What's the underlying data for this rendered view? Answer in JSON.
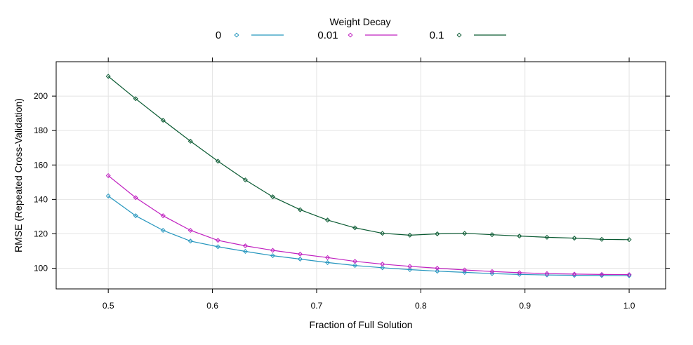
{
  "chart_data": {
    "type": "line",
    "xlabel": "Fraction of Full Solution",
    "ylabel": "RMSE (Repeated Cross-Validation)",
    "xlim": [
      0.45,
      1.035
    ],
    "ylim": [
      88,
      220
    ],
    "xticks": [
      0.5,
      0.6,
      0.7,
      0.8,
      0.9,
      1.0
    ],
    "xtick_labels": [
      "0.5",
      "0.6",
      "0.7",
      "0.8",
      "0.9",
      "1.0"
    ],
    "yticks": [
      100,
      120,
      140,
      160,
      180,
      200
    ],
    "ytick_labels": [
      "100",
      "120",
      "140",
      "160",
      "180",
      "200"
    ],
    "grid": true,
    "legend": {
      "title": "Weight Decay",
      "placement": "top-center"
    },
    "x": [
      0.5,
      0.5263,
      0.5526,
      0.5789,
      0.6053,
      0.6316,
      0.6579,
      0.6842,
      0.7105,
      0.7368,
      0.7632,
      0.7895,
      0.8158,
      0.8421,
      0.8684,
      0.8947,
      0.9211,
      0.9474,
      0.9737,
      1.0
    ],
    "series": [
      {
        "name": "0",
        "color": "#2596be",
        "values": [
          142,
          130.5,
          122,
          115.8,
          112.5,
          109.8,
          107.3,
          105.3,
          103.3,
          101.6,
          100.3,
          99.2,
          98.3,
          97.6,
          96.9,
          96.4,
          96.1,
          95.9,
          95.8,
          95.7
        ]
      },
      {
        "name": "0.01",
        "color": "#c020c0",
        "values": [
          153.8,
          141,
          130.5,
          122,
          116.2,
          113,
          110.4,
          108.2,
          106.2,
          104,
          102.4,
          101.1,
          100,
          99,
          98.1,
          97.4,
          96.9,
          96.6,
          96.4,
          96.3
        ]
      },
      {
        "name": "0.1",
        "color": "#0a5a32",
        "values": [
          211.5,
          198.5,
          186,
          173.8,
          162.2,
          151.3,
          141.5,
          134,
          128,
          123.5,
          120.3,
          119.2,
          120,
          120.3,
          119.5,
          118.7,
          118,
          117.5,
          116.8,
          116.6
        ]
      }
    ]
  }
}
